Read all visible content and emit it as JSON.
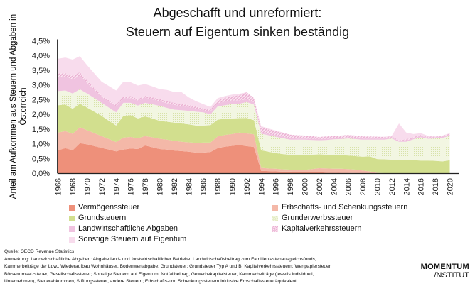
{
  "title_line1": "Abgeschafft und unreformiert:",
  "title_line2": "Steuern auf Eigentum sinken beständig",
  "chart_data": {
    "type": "area",
    "stacked": true,
    "ylabel_line1": "Anteil am Aufkommen aus Steuern und Abgaben in",
    "ylabel_line2": "Österreich",
    "ylim": [
      0,
      4.5
    ],
    "yticks": [
      "0,0%",
      "0,5%",
      "1,0%",
      "1,5%",
      "2,0%",
      "2,5%",
      "3,0%",
      "3,5%",
      "4,0%",
      "4,5%"
    ],
    "x": [
      1966,
      1967,
      1968,
      1969,
      1970,
      1971,
      1972,
      1973,
      1974,
      1975,
      1976,
      1977,
      1978,
      1979,
      1980,
      1981,
      1982,
      1983,
      1984,
      1985,
      1986,
      1987,
      1988,
      1989,
      1990,
      1991,
      1992,
      1993,
      1994,
      1995,
      1996,
      1997,
      1998,
      1999,
      2000,
      2001,
      2002,
      2003,
      2004,
      2005,
      2006,
      2007,
      2008,
      2009,
      2010,
      2011,
      2012,
      2013,
      2014,
      2015,
      2016,
      2017,
      2018,
      2019,
      2020
    ],
    "xticks": [
      "1966",
      "1968",
      "1970",
      "1972",
      "1974",
      "1976",
      "1978",
      "1980",
      "1982",
      "1984",
      "1986",
      "1988",
      "1990",
      "1992",
      "1994",
      "1996",
      "1998",
      "2000",
      "2002",
      "2004",
      "2006",
      "2008",
      "2010",
      "2012",
      "2014",
      "2016",
      "2018",
      "2020"
    ],
    "grid": false,
    "legend_position": "bottom",
    "series": [
      {
        "name": "Vermögenssteuer",
        "color": "#ee907a",
        "pattern": "solid",
        "values": [
          0.78,
          0.85,
          0.78,
          1.02,
          0.98,
          0.92,
          0.86,
          0.8,
          0.74,
          0.8,
          0.84,
          0.82,
          0.94,
          0.88,
          0.82,
          0.8,
          0.77,
          0.75,
          0.73,
          0.7,
          0.7,
          0.72,
          0.85,
          0.9,
          0.93,
          0.96,
          0.92,
          0.89,
          0.08,
          0.07,
          0.06,
          0.05,
          0.05,
          0.04,
          0.04,
          0.03,
          0.03,
          0.02,
          0.02,
          0.01,
          0.01,
          0,
          0,
          0,
          0,
          0,
          0,
          0,
          0,
          0,
          0,
          0,
          0,
          0,
          0
        ]
      },
      {
        "name": "Erbschafts- und Schenkungssteuern",
        "color": "#f4b8a8",
        "pattern": "solid",
        "values": [
          0.6,
          0.58,
          0.56,
          0.54,
          0.48,
          0.44,
          0.4,
          0.36,
          0.32,
          0.41,
          0.39,
          0.37,
          0.32,
          0.34,
          0.35,
          0.34,
          0.33,
          0.32,
          0.32,
          0.33,
          0.34,
          0.32,
          0.4,
          0.4,
          0.4,
          0.42,
          0.43,
          0.43,
          0.1,
          0.09,
          0.09,
          0.08,
          0.07,
          0.07,
          0.07,
          0.11,
          0.14,
          0.14,
          0.13,
          0.14,
          0.13,
          0.12,
          0.09,
          0.06,
          0.01,
          0,
          0,
          0,
          0,
          0,
          0,
          0,
          0,
          0,
          0
        ]
      },
      {
        "name": "Grundsteuern",
        "color": "#d2df8e",
        "pattern": "solid",
        "values": [
          0.93,
          0.9,
          0.85,
          0.8,
          0.77,
          0.73,
          0.69,
          0.62,
          0.56,
          0.74,
          0.74,
          0.67,
          0.67,
          0.64,
          0.61,
          0.61,
          0.62,
          0.62,
          0.61,
          0.59,
          0.58,
          0.59,
          0.57,
          0.55,
          0.53,
          0.49,
          0.53,
          0.48,
          0.6,
          0.57,
          0.53,
          0.52,
          0.5,
          0.51,
          0.51,
          0.49,
          0.47,
          0.47,
          0.48,
          0.46,
          0.46,
          0.46,
          0.47,
          0.51,
          0.47,
          0.47,
          0.46,
          0.45,
          0.44,
          0.44,
          0.43,
          0.43,
          0.42,
          0.4,
          0.44
        ]
      },
      {
        "name": "Grunderwerbssteuer",
        "color": "#e6edc4",
        "pattern": "dotted",
        "values": [
          0.48,
          0.48,
          0.52,
          0.49,
          0.48,
          0.46,
          0.44,
          0.45,
          0.45,
          0.44,
          0.42,
          0.44,
          0.46,
          0.48,
          0.51,
          0.47,
          0.44,
          0.45,
          0.46,
          0.47,
          0.45,
          0.37,
          0.45,
          0.46,
          0.49,
          0.49,
          0.54,
          0.53,
          0.56,
          0.56,
          0.56,
          0.54,
          0.52,
          0.52,
          0.52,
          0.5,
          0.48,
          0.5,
          0.52,
          0.55,
          0.58,
          0.58,
          0.58,
          0.57,
          0.66,
          0.67,
          0.72,
          0.62,
          0.63,
          0.71,
          0.79,
          0.74,
          0.76,
          0.8,
          0.83
        ]
      },
      {
        "name": "Landwirtschaftliche Abgaben",
        "color": "#f0c3e0",
        "pattern": "solid",
        "values": [
          0.48,
          0.48,
          0.48,
          0.46,
          0.36,
          0.28,
          0.2,
          0.2,
          0.2,
          0.16,
          0.16,
          0.17,
          0.18,
          0.17,
          0.16,
          0.16,
          0.16,
          0.14,
          0.13,
          0.1,
          0.07,
          0.1,
          0.11,
          0.12,
          0.12,
          0.12,
          0.09,
          0.09,
          0.04,
          0.04,
          0.05,
          0.05,
          0.05,
          0.04,
          0.04,
          0.04,
          0.04,
          0.04,
          0.04,
          0.04,
          0.04,
          0.04,
          0.04,
          0.04,
          0.04,
          0.04,
          0.04,
          0.03,
          0.05,
          0.04,
          0.04,
          0.04,
          0.04,
          0.04,
          0.04
        ]
      },
      {
        "name": "Kapitalverkehrssteuern",
        "color": "#eeb6d6",
        "pattern": "hatched",
        "values": [
          0.12,
          0.11,
          0.12,
          0.12,
          0.08,
          0.06,
          0.04,
          0.05,
          0.06,
          0.05,
          0.07,
          0.05,
          0.06,
          0.07,
          0.07,
          0.07,
          0.07,
          0.07,
          0.07,
          0.07,
          0.06,
          0.05,
          0.1,
          0.13,
          0.15,
          0.17,
          0.24,
          0.13,
          0.19,
          0.17,
          0.14,
          0.13,
          0.12,
          0.11,
          0.1,
          0.09,
          0.07,
          0.08,
          0.08,
          0.08,
          0.08,
          0.08,
          0.07,
          0.07,
          0.06,
          0.05,
          0.03,
          0.02,
          0.03,
          0.04,
          0.04,
          0.03,
          0.03,
          0.03,
          0.03
        ]
      },
      {
        "name": "Sonstige Steuern auf Eigentum",
        "color": "#f8dced",
        "pattern": "solid",
        "values": [
          0.5,
          0.53,
          0.55,
          0.55,
          0.52,
          0.5,
          0.48,
          0.48,
          0.48,
          0.51,
          0.47,
          0.46,
          0.4,
          0.37,
          0.34,
          0.38,
          0.37,
          0.41,
          0.26,
          0.19,
          0.15,
          0.1,
          0.07,
          0.06,
          0.05,
          0.05,
          0,
          0,
          0.03,
          0.02,
          0.02,
          0.01,
          0,
          0,
          0,
          0,
          0,
          0,
          0,
          0,
          0,
          0,
          0,
          0,
          0,
          0.01,
          0.02,
          0.57,
          0.23,
          0.1,
          0.06,
          0.03,
          0.01,
          0.01,
          0.02
        ]
      }
    ]
  },
  "footer": {
    "source": "Quelle: OECD Revenue Statistics",
    "note1": "Anmerkung: Landwirtschaftliche Abgaben: Abgabe land- und forstwirtschaftlicher Betriebe, Landwirtschaftsbeitrag zum Familienlastenausgleichsfonds,",
    "note2": "Kammerbeiträge der Ldw., Wiederaufbau Wohnhäuser, Bodenwertabgabe; Grundsteuer: Grundsteuer Typ A und B; Kapitalverkehrssteuern: Wertpapiersteuer,",
    "note3": "Börsenumsatzsteuer, Gesellschaftssteuer; Sonstige Steuern auf Eigentum: Notfallbeitrag, Gewerbekapitalsteuer, Kammerbeiträge (jeweils individuell,",
    "note4": "Unternehmen), Steuerabkommen, Stiftungssteuer, andere Steuern; Erbschafts-und Schenkungssteuern inklusive Erbschaftssteueräquivalent"
  },
  "logo": {
    "line1": "MOMENTUM",
    "line2": "/NSTITUT"
  }
}
